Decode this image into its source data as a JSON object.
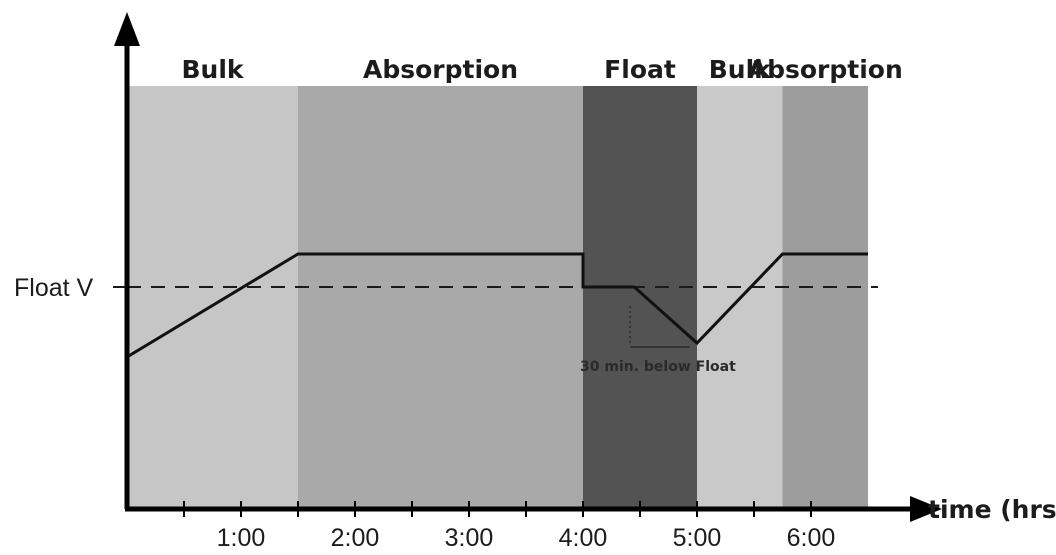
{
  "chart_data": {
    "type": "line",
    "title": "",
    "xlabel": "time (hrs)",
    "ylabel": "",
    "x_ticks": [
      {
        "x": 1,
        "label": "1:00"
      },
      {
        "x": 2,
        "label": "2:00"
      },
      {
        "x": 3,
        "label": "3:00"
      },
      {
        "x": 4,
        "label": "4:00"
      },
      {
        "x": 5,
        "label": "5:00"
      },
      {
        "x": 6,
        "label": "6:00"
      }
    ],
    "minor_ticks": [
      0.5,
      1.5,
      2.5,
      3.5,
      4.5,
      5.5
    ],
    "xlim": [
      0,
      6.8
    ],
    "stages": [
      {
        "label": "Bulk",
        "start": 0,
        "end": 1.5,
        "color": "#c6c6c6"
      },
      {
        "label": "Absorption",
        "start": 1.5,
        "end": 4.0,
        "color": "#a9a9a9"
      },
      {
        "label": "Float",
        "start": 4.0,
        "end": 5.0,
        "color": "#535353"
      },
      {
        "label": "Bulk",
        "start": 5.0,
        "end": 5.75,
        "color": "#c9c9c9"
      },
      {
        "label": "Absorption",
        "start": 5.75,
        "end": 6.5,
        "color": "#9d9d9d"
      }
    ],
    "reference_line": {
      "label": "Float V",
      "style": "dashed"
    },
    "series": [
      {
        "points": [
          {
            "x": 0,
            "v": "below float"
          },
          {
            "x": 1.5,
            "v": "absorption"
          },
          {
            "x": 4.0,
            "v": "absorption"
          },
          {
            "x": 4.0,
            "v": "float"
          },
          {
            "x": 4.45,
            "v": "float"
          },
          {
            "x": 5.0,
            "v": "below float"
          },
          {
            "x": 5.75,
            "v": "absorption"
          },
          {
            "x": 6.5,
            "v": "absorption"
          }
        ]
      }
    ],
    "annotations": [
      {
        "text": "30 min. below Float",
        "x": 4.9
      }
    ],
    "grid": false,
    "legend": "none"
  }
}
